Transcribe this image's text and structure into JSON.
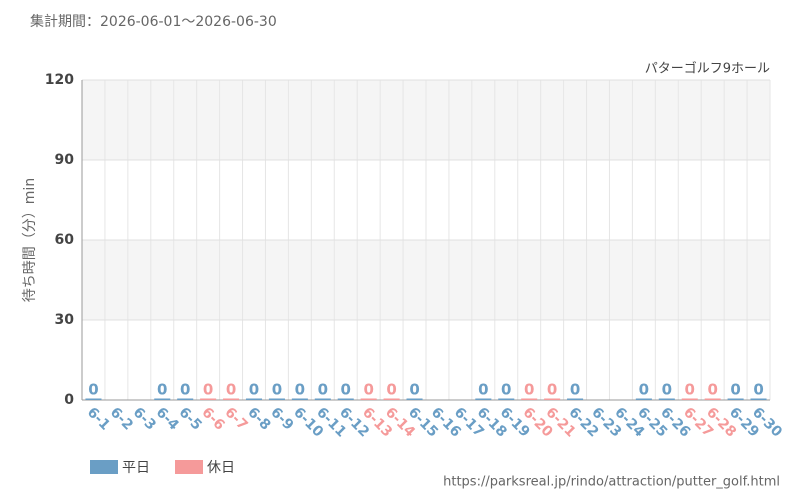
{
  "chart_data": {
    "type": "bar",
    "title": "集計期間：2026-06-01～2026-06-30",
    "subtitle": "パターゴルフ9ホール",
    "y_label": "待ち時間（分）min",
    "source": "https://parksreal.jp/rindo/attraction/putter_golf.html",
    "categories": [
      "6-1",
      "6-2",
      "6-3",
      "6-4",
      "6-5",
      "6-6",
      "6-7",
      "6-8",
      "6-9",
      "6-10",
      "6-11",
      "6-12",
      "6-13",
      "6-14",
      "6-15",
      "6-16",
      "6-17",
      "6-18",
      "6-19",
      "6-20",
      "6-21",
      "6-22",
      "6-23",
      "6-24",
      "6-25",
      "6-26",
      "6-27",
      "6-28",
      "6-29",
      "6-30"
    ],
    "series": [
      {
        "name": "平日",
        "color": "#6a9ec5",
        "values": [
          0,
          null,
          null,
          0,
          0,
          null,
          null,
          0,
          0,
          0,
          0,
          0,
          null,
          null,
          0,
          null,
          null,
          0,
          0,
          null,
          null,
          0,
          null,
          null,
          0,
          0,
          null,
          null,
          0,
          0
        ]
      },
      {
        "name": "休日",
        "color": "#f59a9a",
        "values": [
          null,
          null,
          null,
          null,
          null,
          0,
          0,
          null,
          null,
          null,
          null,
          null,
          0,
          0,
          null,
          null,
          null,
          null,
          null,
          0,
          0,
          null,
          null,
          null,
          null,
          null,
          0,
          0,
          null,
          null
        ]
      }
    ],
    "ylim": [
      0,
      120
    ],
    "yticks": [
      0,
      30,
      60,
      90,
      120
    ],
    "grid": true,
    "legend": "bottom-left"
  }
}
